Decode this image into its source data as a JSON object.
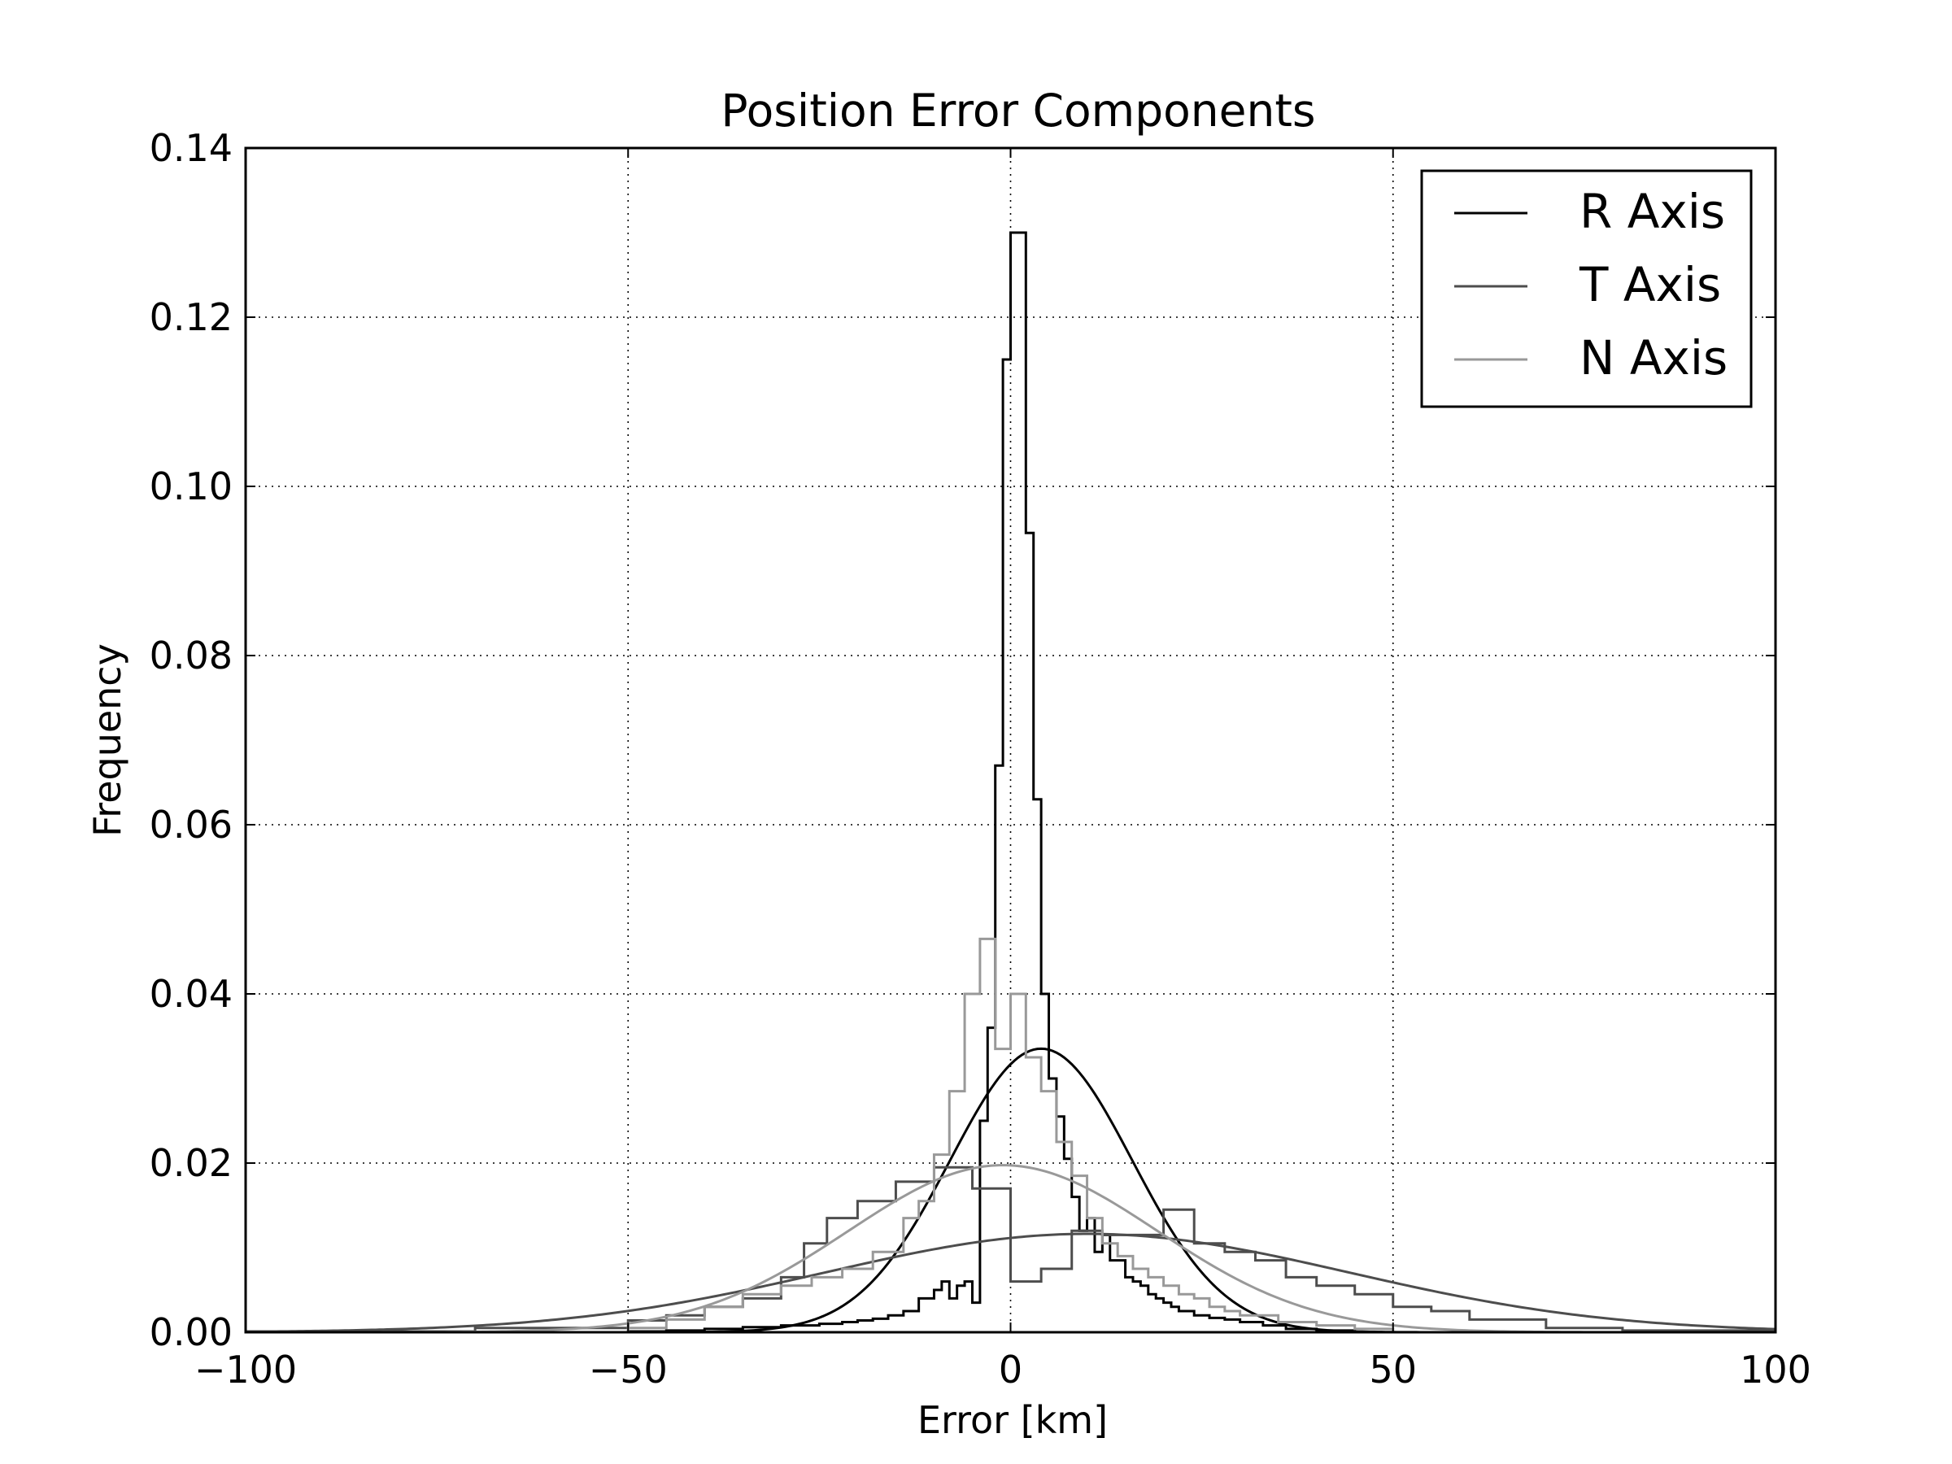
{
  "chart_data": {
    "type": "line",
    "title": "Position Error Components",
    "xlabel": "Error [km]",
    "ylabel": "Frequency",
    "xlim": [
      -100,
      100
    ],
    "ylim": [
      0,
      0.14
    ],
    "xticks": [
      -100,
      -50,
      0,
      50,
      100
    ],
    "xtick_labels": [
      "−100",
      "−50",
      "0",
      "50",
      "100"
    ],
    "yticks": [
      0,
      0.02,
      0.04,
      0.06,
      0.08,
      0.1,
      0.12,
      0.14
    ],
    "ytick_labels": [
      "0.00",
      "0.02",
      "0.04",
      "0.06",
      "0.08",
      "0.10",
      "0.12",
      "0.14"
    ],
    "grid": true,
    "grid_style": "dotted",
    "legend_position": "top-right",
    "series": [
      {
        "name": "R Axis",
        "color": "#000000",
        "fit": {
          "kind": "normal",
          "mean": 4,
          "sigma": 11.9
        },
        "hist": {
          "edges": [
            -50,
            -45,
            -40,
            -35,
            -30,
            -25,
            -22,
            -20,
            -18,
            -16,
            -14,
            -12,
            -10,
            -9,
            -8,
            -7,
            -6,
            -5,
            -4,
            -3,
            -2,
            -1,
            0,
            1,
            2,
            3,
            4,
            5,
            6,
            7,
            8,
            9,
            10,
            11,
            12,
            13,
            14,
            15,
            16,
            17,
            18,
            19,
            20,
            21,
            22,
            24,
            26,
            28,
            30,
            33,
            36,
            40,
            45
          ],
          "values": [
            0.0001,
            0.0002,
            0.0004,
            0.0006,
            0.0008,
            0.001,
            0.0012,
            0.0014,
            0.0016,
            0.002,
            0.0025,
            0.004,
            0.005,
            0.006,
            0.004,
            0.0055,
            0.006,
            0.0035,
            0.025,
            0.036,
            0.067,
            0.115,
            0.13,
            0.13,
            0.0945,
            0.063,
            0.04,
            0.03,
            0.0255,
            0.0205,
            0.016,
            0.012,
            0.0135,
            0.0095,
            0.0115,
            0.0085,
            0.0085,
            0.0065,
            0.006,
            0.0055,
            0.0045,
            0.004,
            0.0035,
            0.003,
            0.0025,
            0.002,
            0.0017,
            0.0015,
            0.0012,
            0.0008,
            0.0004,
            0.0002
          ]
        }
      },
      {
        "name": "T Axis",
        "color": "#4d4d4d",
        "fit": {
          "kind": "normal",
          "mean": 10,
          "sigma": 34.3
        },
        "hist": {
          "edges": [
            -100,
            -70,
            -50,
            -45,
            -40,
            -35,
            -30,
            -27,
            -24,
            -20,
            -15,
            -10,
            -5,
            0,
            4,
            8,
            12,
            16,
            20,
            24,
            28,
            32,
            36,
            40,
            45,
            50,
            55,
            60,
            70,
            80,
            100
          ],
          "values": [
            0.0001,
            0.0005,
            0.0014,
            0.002,
            0.003,
            0.004,
            0.0065,
            0.0105,
            0.0135,
            0.0155,
            0.0178,
            0.0195,
            0.017,
            0.006,
            0.0075,
            0.012,
            0.0115,
            0.0115,
            0.0145,
            0.0105,
            0.0095,
            0.0085,
            0.0065,
            0.0055,
            0.0045,
            0.003,
            0.0025,
            0.0015,
            0.0005,
            0.0002
          ]
        }
      },
      {
        "name": "N Axis",
        "color": "#999999",
        "fit": {
          "kind": "normal",
          "mean": -1,
          "sigma": 20.2
        },
        "hist": {
          "edges": [
            -50,
            -45,
            -40,
            -35,
            -30,
            -26,
            -22,
            -18,
            -14,
            -12,
            -10,
            -8,
            -6,
            -4,
            -2,
            0,
            2,
            4,
            6,
            8,
            10,
            12,
            14,
            16,
            18,
            20,
            22,
            24,
            26,
            28,
            30,
            35,
            40,
            45,
            50
          ],
          "values": [
            0.0005,
            0.0015,
            0.003,
            0.0045,
            0.0055,
            0.0065,
            0.0075,
            0.0095,
            0.0135,
            0.0155,
            0.021,
            0.0285,
            0.04,
            0.0465,
            0.0335,
            0.04,
            0.0325,
            0.0285,
            0.0225,
            0.0185,
            0.0135,
            0.0105,
            0.009,
            0.0075,
            0.0065,
            0.0055,
            0.0045,
            0.004,
            0.003,
            0.0025,
            0.002,
            0.0012,
            0.0008,
            0.0004
          ]
        }
      }
    ]
  }
}
